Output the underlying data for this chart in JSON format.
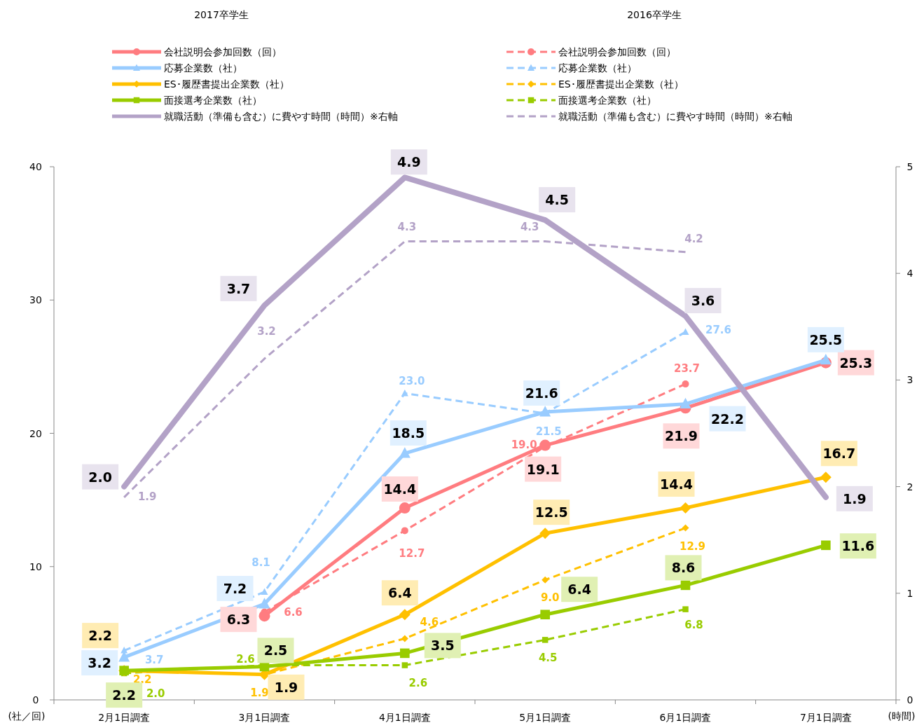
{
  "chart_data": {
    "type": "line",
    "categories": [
      "2月1日調査",
      "3月1日調査",
      "4月1日調査",
      "5月1日調査",
      "6月1日調査",
      "7月1日調査"
    ],
    "ylabel": "(社／回)",
    "y2label": "(時間)",
    "ylim": [
      0,
      40
    ],
    "yticks": [
      0,
      10,
      20,
      30,
      40
    ],
    "y2lim": [
      0,
      5
    ],
    "y2ticks": [
      0,
      1,
      2,
      3,
      4,
      5
    ],
    "legend": "top",
    "grid": false,
    "annotations": [
      "2017卒学生",
      "2016卒学生"
    ],
    "series": [
      {
        "name": "会社説明会参加回数（回）",
        "color": "#ff7c80",
        "marker": "circle",
        "line_style": "solid",
        "values": [
          null,
          6.3,
          14.4,
          19.1,
          21.9,
          25.3
        ],
        "value_labels": [
          null,
          "6.3",
          "14.4",
          "19.1",
          "21.9",
          "25.3"
        ]
      },
      {
        "name": "応募企業数（社）",
        "color": "#99ccff",
        "marker": "triangle",
        "line_style": "solid",
        "values": [
          3.2,
          7.2,
          18.5,
          21.6,
          22.2,
          25.5
        ],
        "value_labels": [
          "3.2",
          "7.2",
          "18.5",
          "21.6",
          "22.2",
          "25.5"
        ]
      },
      {
        "name": "ES･履歴書提出企業数（社）",
        "color": "#ffc000",
        "marker": "diamond",
        "line_style": "solid",
        "values": [
          2.2,
          1.9,
          6.4,
          12.5,
          14.4,
          16.7
        ],
        "value_labels": [
          "2.2",
          "1.9",
          "6.4",
          "12.5",
          "14.4",
          "16.7"
        ]
      },
      {
        "name": "面接選考企業数（社）",
        "color": "#99cc00",
        "marker": "square",
        "line_style": "solid",
        "values": [
          2.2,
          2.5,
          3.5,
          6.4,
          8.6,
          11.6
        ],
        "value_labels": [
          "2.2",
          "2.5",
          "3.5",
          "6.4",
          "8.6",
          "11.6"
        ]
      },
      {
        "name": "就職活動（準備も含む）に費やす時間（時間）※右軸",
        "color": "#b3a2c7",
        "marker": "none",
        "line_style": "solid",
        "axis": "y2",
        "values": [
          2.0,
          3.7,
          4.9,
          4.5,
          3.6,
          1.9
        ],
        "value_labels": [
          "2.0",
          "3.7",
          "4.9",
          "4.5",
          "3.6",
          "1.9"
        ]
      },
      {
        "name": "会社説明会参加回数（回）",
        "color": "#ff7c80",
        "marker": "circle",
        "line_style": "dashed",
        "values": [
          null,
          6.6,
          12.7,
          19.0,
          23.7,
          null
        ],
        "value_labels": [
          null,
          "6.6",
          "12.7",
          "19.0",
          "23.7",
          null
        ]
      },
      {
        "name": "応募企業数（社）",
        "color": "#99ccff",
        "marker": "triangle",
        "line_style": "dashed",
        "values": [
          3.7,
          8.1,
          23.0,
          21.5,
          27.6,
          null
        ],
        "value_labels": [
          "3.7",
          "8.1",
          "23.0",
          "21.5",
          "27.6",
          null
        ]
      },
      {
        "name": "ES･履歴書提出企業数（社）",
        "color": "#ffc000",
        "marker": "diamond",
        "line_style": "dashed",
        "values": [
          2.2,
          1.9,
          4.6,
          9.0,
          12.9,
          null
        ],
        "value_labels": [
          "2.2",
          "1.9",
          "4.6",
          "9.0",
          "12.9",
          null
        ]
      },
      {
        "name": "面接選考企業数（社）",
        "color": "#99cc00",
        "marker": "square",
        "line_style": "dashed",
        "values": [
          2.0,
          2.6,
          2.6,
          4.5,
          6.8,
          null
        ],
        "value_labels": [
          "2.0",
          "2.6",
          "2.6",
          "4.5",
          "6.8",
          null
        ]
      },
      {
        "name": "就職活動（準備も含む）に費やす時間（時間）※右軸",
        "color": "#b3a2c7",
        "marker": "none",
        "line_style": "dashed",
        "axis": "y2",
        "values": [
          1.9,
          3.2,
          4.3,
          4.3,
          4.2,
          null
        ],
        "value_labels": [
          "1.9",
          "3.2",
          "4.3",
          "4.3",
          "4.2",
          null
        ]
      }
    ]
  }
}
